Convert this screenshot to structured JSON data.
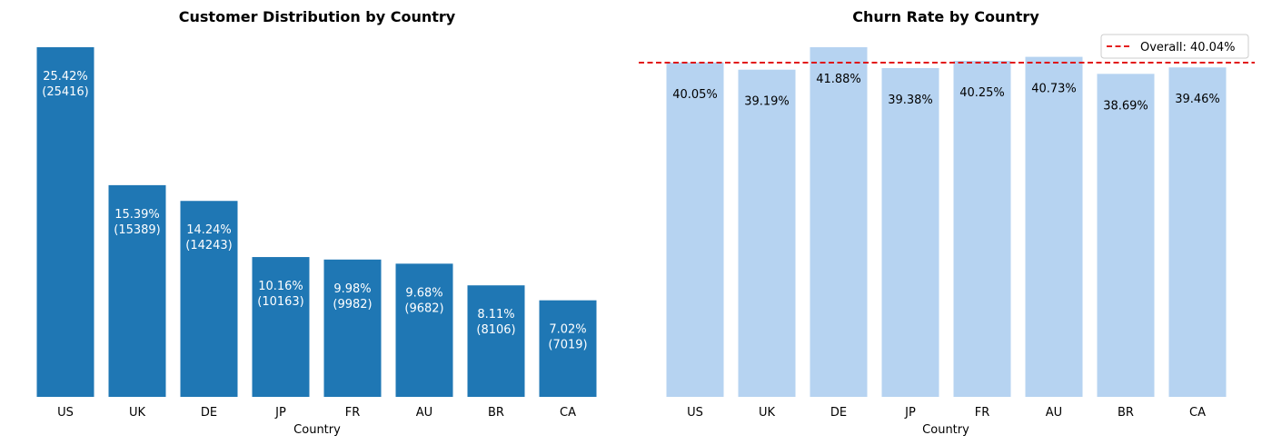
{
  "colors": {
    "distribution_bar": "#1f77b4",
    "churn_bar": "#b6d3f1",
    "overall_line": "#e00000"
  },
  "chart_data": [
    {
      "type": "bar",
      "title": "Customer Distribution by Country",
      "xlabel": "Country",
      "ylabel": "",
      "categories": [
        "US",
        "UK",
        "DE",
        "JP",
        "FR",
        "AU",
        "BR",
        "CA"
      ],
      "values": [
        25416,
        15389,
        14243,
        10163,
        9982,
        9682,
        8106,
        7019
      ],
      "percent_labels": [
        "25.42%",
        "15.39%",
        "14.24%",
        "10.16%",
        "9.98%",
        "9.68%",
        "8.11%",
        "7.02%"
      ],
      "count_labels": [
        "(25416)",
        "(15389)",
        "(14243)",
        "(10163)",
        "(9982)",
        "(9682)",
        "(8106)",
        "(7019)"
      ],
      "ylim": [
        0,
        25416
      ],
      "grid": false,
      "yaxis_visible": false
    },
    {
      "type": "bar",
      "title": "Churn Rate by Country",
      "xlabel": "Country",
      "ylabel": "",
      "categories": [
        "US",
        "UK",
        "DE",
        "JP",
        "FR",
        "AU",
        "BR",
        "CA"
      ],
      "values": [
        40.05,
        39.19,
        41.88,
        39.38,
        40.25,
        40.73,
        38.69,
        39.46
      ],
      "value_labels": [
        "40.05%",
        "39.19%",
        "41.88%",
        "39.38%",
        "40.25%",
        "40.73%",
        "38.69%",
        "39.46%"
      ],
      "reference_line": {
        "value": 40.04,
        "label": "Overall: 40.04%",
        "style": "dashed"
      },
      "ylim": [
        0,
        41.88
      ],
      "grid": false,
      "yaxis_visible": false,
      "legend": {
        "placement": "top-right",
        "entries": [
          "Overall: 40.04%"
        ]
      }
    }
  ]
}
